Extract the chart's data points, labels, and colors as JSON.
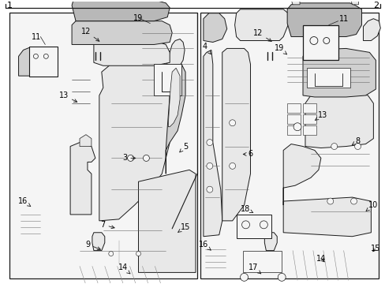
{
  "bg_color": "#ffffff",
  "fig_width": 4.89,
  "fig_height": 3.6,
  "dpi": 100,
  "line_color": "#1a1a1a",
  "fill_light": "#e8e8e8",
  "fill_mid": "#d0d0d0",
  "fill_dark": "#b8b8b8",
  "fill_white": "#f5f5f5",
  "border_lw": 0.8,
  "part_lw": 0.7
}
